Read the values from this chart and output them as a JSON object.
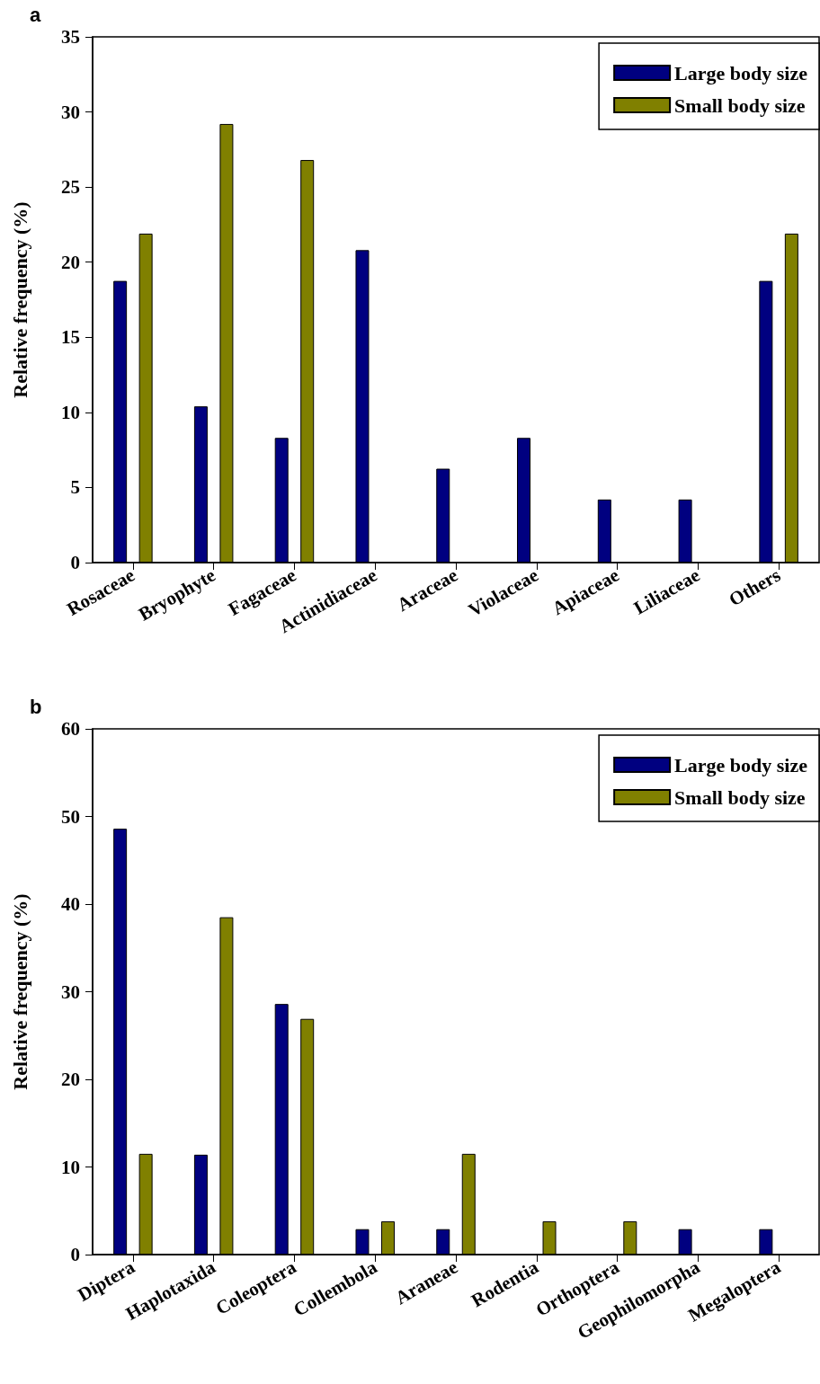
{
  "chart_data": [
    {
      "type": "bar",
      "title": "a",
      "ylabel": "Relative frequency (%)",
      "categories": [
        "Rosaceae",
        "Bryophyte",
        "Fagaceae",
        "Actinidiaceae",
        "Araceae",
        "Violaceae",
        "Apiaceae",
        "Liliaceae",
        "Others"
      ],
      "series": [
        {
          "name": "Large body size",
          "color": "#000080",
          "values": [
            18.75,
            10.4,
            8.3,
            20.8,
            6.25,
            8.3,
            4.2,
            4.2,
            18.75
          ]
        },
        {
          "name": "Small body size",
          "color": "#808000",
          "values": [
            21.9,
            29.2,
            26.8,
            null,
            null,
            null,
            null,
            null,
            21.9
          ]
        }
      ],
      "ylim": [
        0,
        35
      ],
      "yticks": [
        0,
        5,
        10,
        15,
        20,
        25,
        30,
        35
      ],
      "legend": "top right",
      "grid": false
    },
    {
      "type": "bar",
      "title": "b",
      "ylabel": "Relative frequency (%)",
      "categories": [
        "Diptera",
        "Haplotaxida",
        "Coleoptera",
        "Collembola",
        "Araneae",
        "Rodentia",
        "Orthoptera",
        "Geophilomorpha",
        "Megaloptera"
      ],
      "series": [
        {
          "name": "Large body size",
          "color": "#000080",
          "values": [
            48.6,
            11.4,
            28.6,
            2.9,
            2.9,
            null,
            null,
            2.9,
            2.9
          ]
        },
        {
          "name": "Small body size",
          "color": "#808000",
          "values": [
            11.5,
            38.5,
            26.9,
            3.8,
            11.5,
            3.8,
            3.8,
            null,
            null
          ]
        }
      ],
      "ylim": [
        0,
        60
      ],
      "yticks": [
        0,
        10,
        20,
        30,
        40,
        50,
        60
      ],
      "legend": "top right",
      "grid": false
    }
  ]
}
